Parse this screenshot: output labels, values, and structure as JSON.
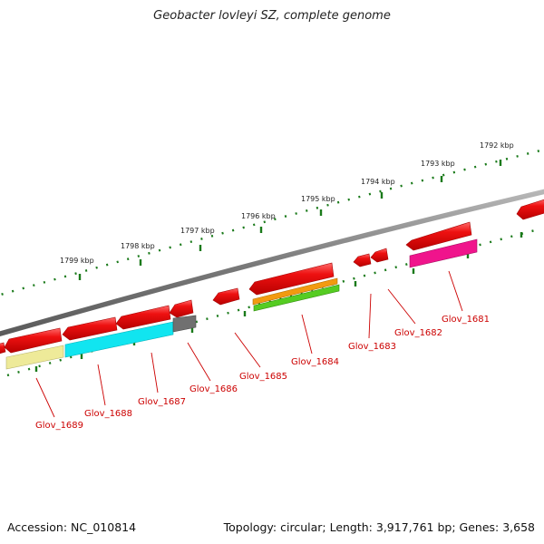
{
  "title": "Geobacter lovleyi SZ, complete genome",
  "footer": {
    "accession": "Accession: NC_010814",
    "summary": "Topology: circular; Length: 3,917,761 bp; Genes: 3,658"
  },
  "scale_labels": [
    "1792 kbp",
    "1793 kbp",
    "1794 kbp",
    "1795 kbp",
    "1796 kbp",
    "1797 kbp",
    "1798 kbp",
    "1799 kbp"
  ],
  "gene_labels": [
    "Glov_1681",
    "Glov_1682",
    "Glov_1683",
    "Glov_1684",
    "Glov_1685",
    "Glov_1686",
    "Glov_1687",
    "Glov_1688",
    "Glov_1689"
  ],
  "colors": {
    "backbone": "#808080",
    "gene": "#ee1111",
    "tick": "#1a7a1a",
    "label": "#cc0000",
    "feature_yellow": "#eeea99",
    "feature_cyan": "#11e5f0",
    "feature_gray": "#707070",
    "feature_orange": "#f29a10",
    "feature_green": "#55cc22",
    "feature_magenta": "#f0148c"
  }
}
